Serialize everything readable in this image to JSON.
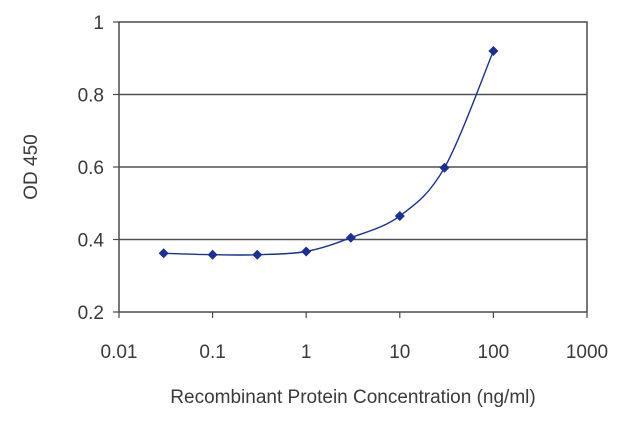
{
  "chart_data": {
    "type": "line",
    "title": "",
    "xlabel": "Recombinant Protein Concentration (ng/ml)",
    "ylabel": "OD 450",
    "xscale": "log",
    "xlim": [
      0.01,
      1000
    ],
    "ylim": [
      0.2,
      1.0
    ],
    "xticks": [
      "0.01",
      "0.1",
      "1",
      "10",
      "100",
      "1000"
    ],
    "yticks": [
      "0.2",
      "0.4",
      "0.6",
      "0.8",
      "1"
    ],
    "grid": "horizontal",
    "legend": "none",
    "series": [
      {
        "x": [
          0.03,
          0.1,
          0.3,
          1,
          3,
          10,
          30,
          100
        ],
        "values": [
          0.362,
          0.358,
          0.358,
          0.367,
          0.405,
          0.465,
          0.598,
          0.92
        ],
        "color": "#1c2f94"
      }
    ]
  }
}
